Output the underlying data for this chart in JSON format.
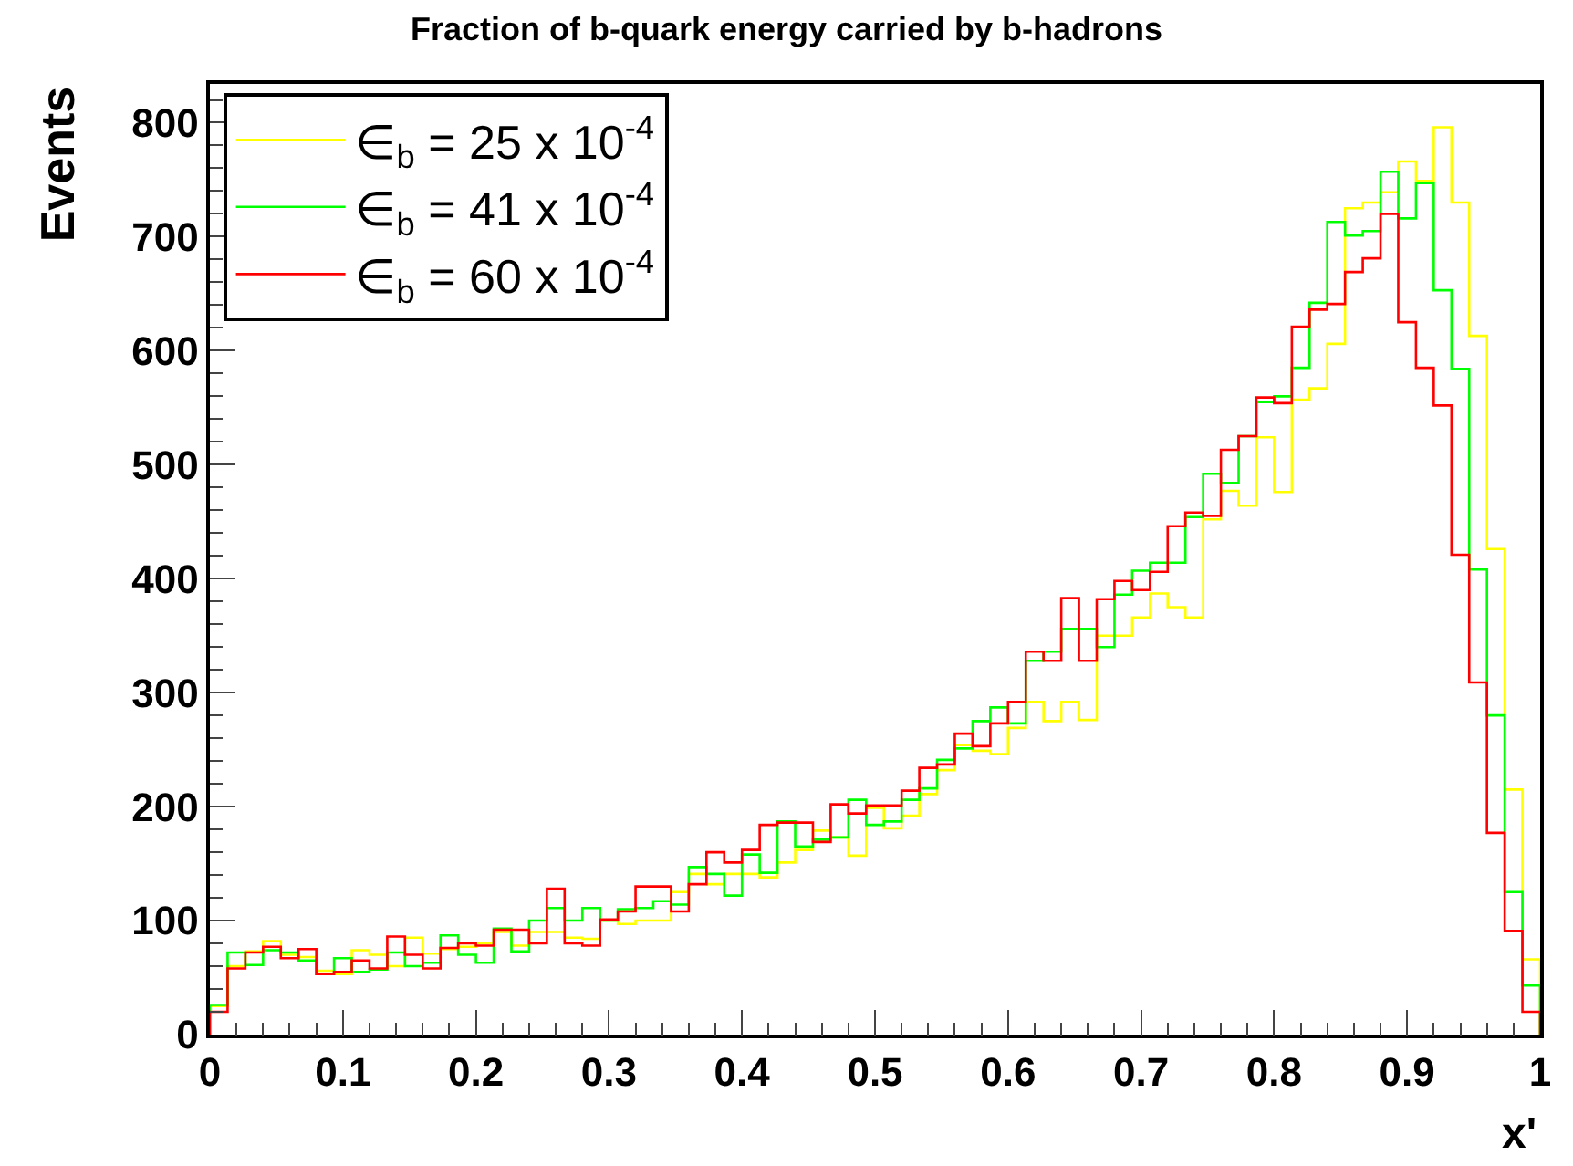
{
  "chart_data": {
    "type": "histogram",
    "title": "Fraction of b-quark energy carried by b-hadrons",
    "xlabel": "x'",
    "ylabel": "Events",
    "bins": [
      0,
      0.013333,
      0.026667,
      0.04,
      0.053333,
      0.066667,
      0.08,
      0.093333,
      0.106667,
      0.12,
      0.133333,
      0.146667,
      0.16,
      0.173333,
      0.186667,
      0.2,
      0.213333,
      0.226667,
      0.24,
      0.253333,
      0.266667,
      0.28,
      0.293333,
      0.306667,
      0.32,
      0.333333,
      0.346667,
      0.36,
      0.373333,
      0.386667,
      0.4,
      0.413333,
      0.426667,
      0.44,
      0.453333,
      0.466667,
      0.48,
      0.493333,
      0.506667,
      0.52,
      0.533333,
      0.546667,
      0.56,
      0.573333,
      0.586667,
      0.6,
      0.613333,
      0.626667,
      0.64,
      0.653333,
      0.666667,
      0.68,
      0.693333,
      0.706667,
      0.72,
      0.733333,
      0.746667,
      0.76,
      0.773333,
      0.786667,
      0.8,
      0.813333,
      0.826667,
      0.84,
      0.853333,
      0.866667,
      0.88,
      0.893333,
      0.906667,
      0.92,
      0.933333,
      0.946667,
      0.96,
      0.973333,
      0.986667,
      1
    ],
    "series": [
      {
        "name": "∈$_{b}$ = 25 x 10$^{-4}$",
        "color": "#ffff00",
        "values": [
          25,
          60,
          73,
          82,
          70,
          68,
          56,
          53,
          74,
          70,
          60,
          85,
          71,
          75,
          77,
          80,
          90,
          78,
          90,
          90,
          85,
          84,
          100,
          97,
          100,
          100,
          125,
          141,
          132,
          141,
          141,
          138,
          151,
          162,
          179,
          173,
          157,
          199,
          181,
          192,
          211,
          232,
          254,
          249,
          246,
          269,
          292,
          275,
          292,
          276,
          350,
          350,
          366,
          387,
          375,
          366,
          452,
          477,
          464,
          524,
          476,
          557,
          567,
          606,
          725,
          730,
          739,
          766,
          749,
          796,
          730,
          613,
          426,
          215,
          66
        ]
      },
      {
        "name": "∈$_{b}$ = 41 x 10$^{-4}$",
        "color": "#00ff00",
        "values": [
          26,
          72,
          61,
          74,
          72,
          65,
          53,
          67,
          55,
          57,
          72,
          60,
          63,
          87,
          70,
          63,
          93,
          73,
          100,
          111,
          100,
          111,
          100,
          110,
          111,
          117,
          114,
          147,
          141,
          122,
          158,
          142,
          187,
          165,
          171,
          173,
          206,
          184,
          187,
          206,
          216,
          241,
          251,
          275,
          287,
          273,
          328,
          336,
          356,
          356,
          340,
          386,
          407,
          414,
          414,
          454,
          492,
          484,
          525,
          555,
          560,
          585,
          642,
          713,
          701,
          705,
          757,
          716,
          747,
          653,
          584,
          408,
          280,
          125,
          43
        ]
      },
      {
        "name": "∈$_{b}$ = 60 x 10$^{-4}$",
        "color": "#ff0000",
        "values": [
          20,
          58,
          72,
          77,
          67,
          75,
          53,
          55,
          65,
          58,
          86,
          70,
          58,
          76,
          80,
          78,
          92,
          92,
          80,
          128,
          80,
          78,
          101,
          108,
          130,
          130,
          108,
          132,
          160,
          151,
          162,
          184,
          186,
          186,
          169,
          202,
          194,
          201,
          201,
          214,
          234,
          237,
          264,
          253,
          273,
          292,
          336,
          328,
          383,
          328,
          382,
          398,
          390,
          406,
          446,
          458,
          455,
          513,
          525,
          559,
          554,
          621,
          636,
          641,
          669,
          681,
          720,
          625,
          585,
          552,
          421,
          309,
          177,
          91,
          20
        ]
      }
    ],
    "xlim": [
      0,
      1
    ],
    "xticks": [
      0,
      {
        "value": 0.1,
        "label": "0.1"
      },
      {
        "value": 0.2,
        "label": "0.2"
      },
      {
        "value": 0.3,
        "label": "0.3"
      },
      {
        "value": 0.4,
        "label": "0.4"
      },
      {
        "value": 0.5,
        "label": "0.5"
      },
      {
        "value": 0.6,
        "label": "0.6"
      },
      {
        "value": 0.7,
        "label": "0.7"
      },
      {
        "value": 0.8,
        "label": "0.8"
      },
      {
        "value": 0.9,
        "label": "0.9"
      },
      1
    ],
    "ylim": [
      0,
      834
    ],
    "yticks": [
      0,
      100,
      200,
      300,
      400,
      500,
      600,
      700,
      800
    ],
    "legend": "top left"
  }
}
